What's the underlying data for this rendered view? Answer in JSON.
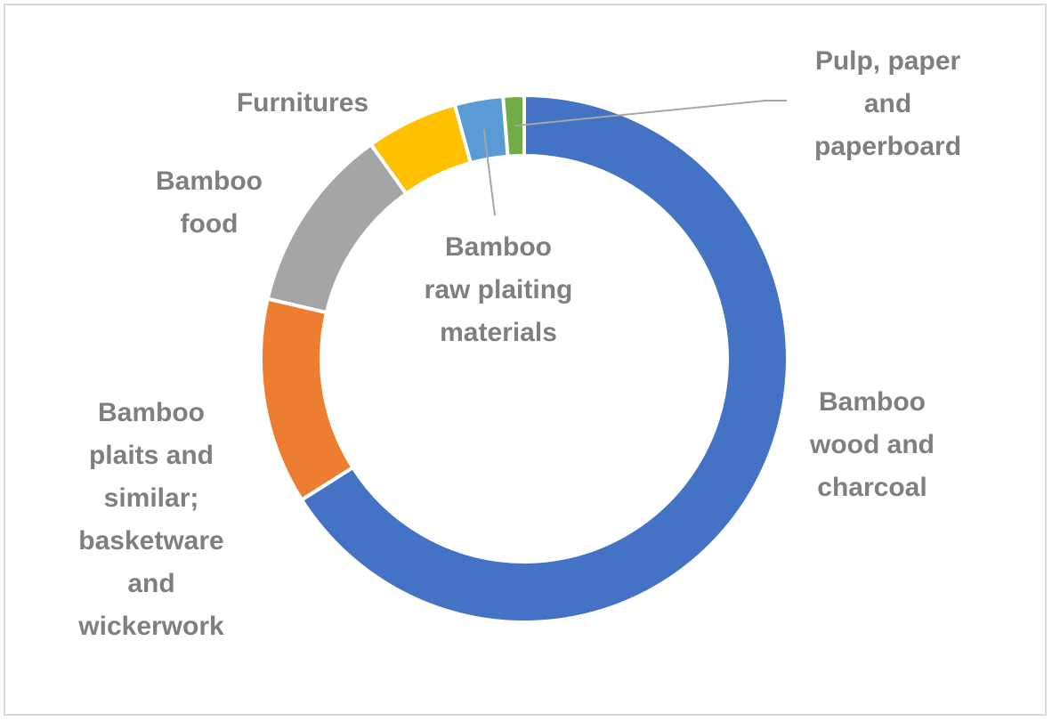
{
  "chart_data": {
    "type": "pie",
    "variant": "donut",
    "title": "",
    "legend": "none",
    "slices": [
      {
        "label": "Bamboo wood and charcoal",
        "value": 66.8,
        "color": "#4472C4"
      },
      {
        "label": "Bamboo plaits and similar; basketware and wickerwork",
        "value": 12.8,
        "color": "#ED7D31"
      },
      {
        "label": "Bamboo food",
        "value": 11.6,
        "color": "#A5A5A5"
      },
      {
        "label": "Furnitures",
        "value": 5.7,
        "color": "#FFC000"
      },
      {
        "label": "Bamboo raw plaiting materials",
        "value": 3.0,
        "color": "#5B9BD5"
      },
      {
        "label": "Pulp, paper and paperboard",
        "value": 1.3,
        "color": "#70AD47"
      }
    ]
  },
  "labels": {
    "wood": "Bamboo\nwood and\ncharcoal",
    "plaits": "Bamboo\nplaits and\nsimilar;\nbasketware\nand\nwickerwork",
    "food": "Bamboo\nfood",
    "furniture": "Furnitures",
    "raw": "Bamboo\nraw plaiting\nmaterials",
    "pulp": "Pulp, paper\nand\npaperboard"
  },
  "leader_color": "#a6a6a6"
}
